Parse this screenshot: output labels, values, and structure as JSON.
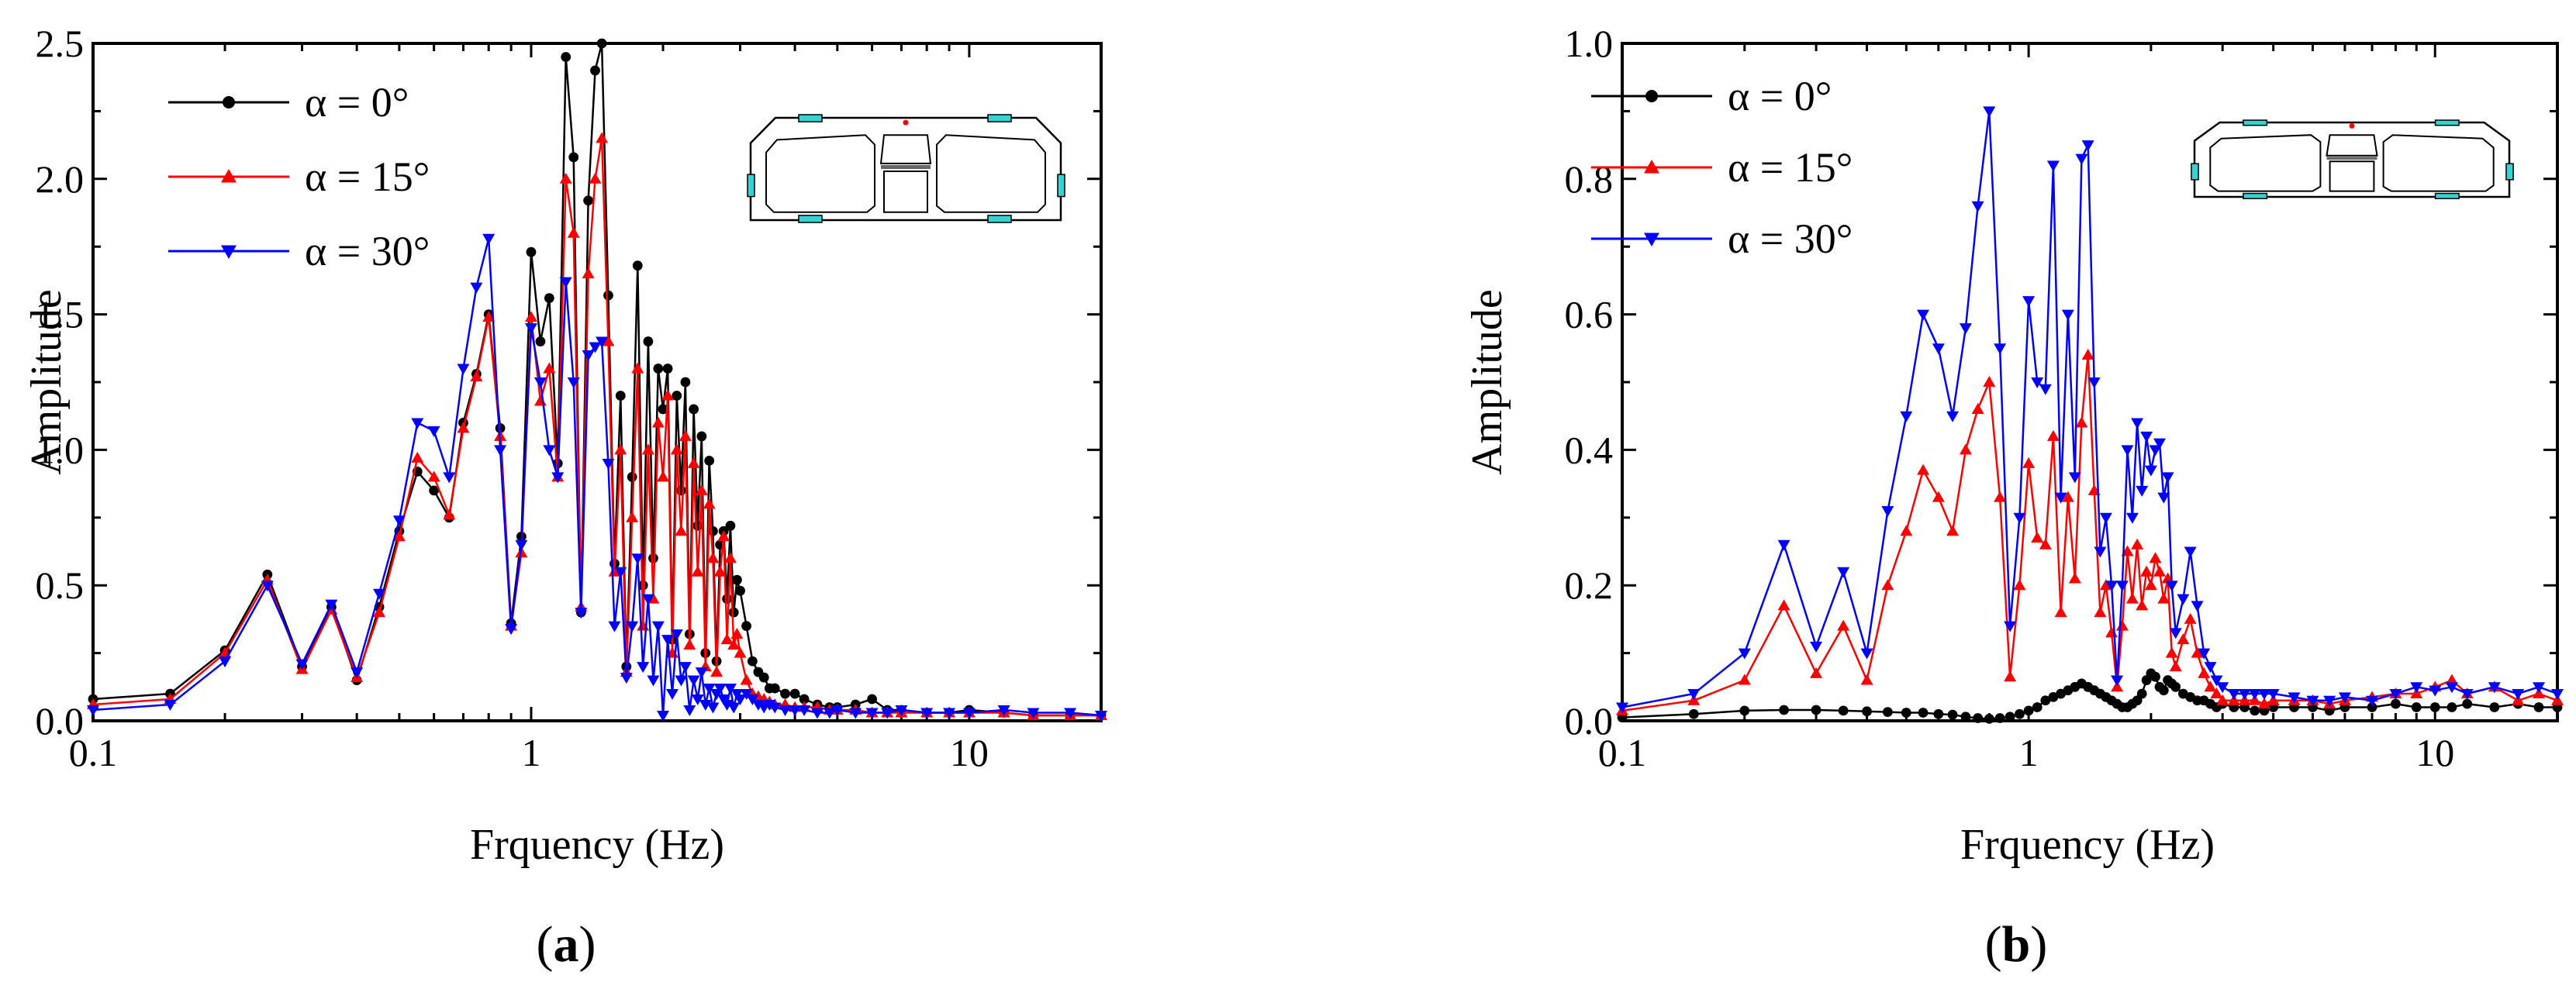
{
  "chart_data": [
    {
      "type": "line",
      "panel": "(a)",
      "panel_letter": "a",
      "xlabel": "Frquency (Hz)",
      "ylabel": "Amplitude",
      "xscale": "log",
      "xlim": [
        0.1,
        20
      ],
      "ylim": [
        0,
        2.5
      ],
      "yticks": [
        "0.0",
        "0.5",
        "1.0",
        "1.5",
        "2.0",
        "2.5"
      ],
      "xticks": [
        "0.1",
        "1",
        "10"
      ],
      "legend": "top-left",
      "inset": "box-girder-cross-section",
      "x": [
        0.1,
        0.15,
        0.2,
        0.25,
        0.3,
        0.35,
        0.4,
        0.45,
        0.5,
        0.55,
        0.6,
        0.65,
        0.7,
        0.75,
        0.8,
        0.85,
        0.9,
        0.95,
        1.0,
        1.05,
        1.1,
        1.15,
        1.2,
        1.25,
        1.3,
        1.35,
        1.4,
        1.45,
        1.5,
        1.55,
        1.6,
        1.65,
        1.7,
        1.75,
        1.8,
        1.85,
        1.9,
        1.95,
        2.0,
        2.05,
        2.1,
        2.15,
        2.2,
        2.25,
        2.3,
        2.35,
        2.4,
        2.45,
        2.5,
        2.55,
        2.6,
        2.65,
        2.7,
        2.75,
        2.8,
        2.85,
        2.9,
        2.95,
        3.0,
        3.1,
        3.2,
        3.3,
        3.4,
        3.5,
        3.6,
        3.8,
        4.0,
        4.2,
        4.5,
        4.8,
        5.0,
        5.5,
        6.0,
        6.5,
        7.0,
        8.0,
        9.0,
        10.0,
        12.0,
        14.0,
        17.0,
        20.0
      ],
      "series": [
        {
          "name": "α = 0°",
          "color": "#000000",
          "marker": "circle",
          "values": [
            0.08,
            0.1,
            0.26,
            0.54,
            0.2,
            0.42,
            0.15,
            0.42,
            0.7,
            0.92,
            0.85,
            0.75,
            1.1,
            1.28,
            1.5,
            1.08,
            0.36,
            0.68,
            1.73,
            1.4,
            1.56,
            0.95,
            2.45,
            2.08,
            0.4,
            1.92,
            2.4,
            2.5,
            1.57,
            0.58,
            1.2,
            0.2,
            0.9,
            1.68,
            0.5,
            1.4,
            0.6,
            1.3,
            1.15,
            1.3,
            0.3,
            1.2,
            0.85,
            1.25,
            0.32,
            1.15,
            0.72,
            1.05,
            0.25,
            0.96,
            0.7,
            0.22,
            0.65,
            0.7,
            0.45,
            0.72,
            0.4,
            0.52,
            0.48,
            0.35,
            0.22,
            0.18,
            0.16,
            0.12,
            0.12,
            0.1,
            0.1,
            0.08,
            0.06,
            0.05,
            0.05,
            0.06,
            0.08,
            0.04,
            0.04,
            0.03,
            0.03,
            0.04,
            0.03,
            0.02,
            0.02,
            0.02
          ]
        },
        {
          "name": "α = 15°",
          "color": "#ff0000",
          "marker": "triangle-up",
          "values": [
            0.06,
            0.08,
            0.25,
            0.52,
            0.19,
            0.41,
            0.16,
            0.4,
            0.68,
            0.97,
            0.9,
            0.76,
            1.08,
            1.27,
            1.49,
            1.05,
            0.35,
            0.62,
            1.49,
            1.18,
            1.3,
            0.9,
            2.0,
            1.8,
            0.42,
            1.65,
            2.0,
            2.15,
            1.4,
            0.55,
            1.0,
            0.18,
            0.75,
            1.3,
            0.35,
            1.0,
            0.45,
            1.1,
            0.9,
            1.2,
            0.25,
            1.0,
            0.7,
            1.05,
            0.28,
            0.95,
            0.55,
            0.85,
            0.2,
            0.8,
            0.6,
            0.18,
            0.55,
            0.68,
            0.3,
            0.6,
            0.28,
            0.32,
            0.25,
            0.15,
            0.1,
            0.09,
            0.08,
            0.07,
            0.06,
            0.06,
            0.05,
            0.05,
            0.05,
            0.04,
            0.04,
            0.04,
            0.03,
            0.03,
            0.03,
            0.03,
            0.03,
            0.03,
            0.03,
            0.02,
            0.02,
            0.02
          ]
        },
        {
          "name": "α = 30°",
          "color": "#0000ff",
          "marker": "triangle-down",
          "values": [
            0.04,
            0.06,
            0.22,
            0.5,
            0.21,
            0.43,
            0.18,
            0.47,
            0.74,
            1.1,
            1.07,
            0.9,
            1.3,
            1.6,
            1.78,
            1.0,
            0.34,
            0.65,
            1.45,
            1.25,
            1.0,
            0.9,
            1.62,
            1.25,
            0.4,
            1.35,
            1.38,
            1.4,
            0.95,
            0.35,
            0.55,
            0.16,
            0.35,
            0.6,
            0.2,
            0.45,
            0.15,
            0.35,
            0.02,
            0.3,
            0.1,
            0.32,
            0.15,
            0.2,
            0.04,
            0.15,
            0.08,
            0.18,
            0.06,
            0.12,
            0.05,
            0.1,
            0.12,
            0.08,
            0.06,
            0.12,
            0.05,
            0.1,
            0.08,
            0.1,
            0.08,
            0.06,
            0.05,
            0.06,
            0.05,
            0.04,
            0.04,
            0.04,
            0.03,
            0.03,
            0.04,
            0.03,
            0.03,
            0.03,
            0.04,
            0.03,
            0.03,
            0.03,
            0.04,
            0.03,
            0.03,
            0.02
          ]
        }
      ]
    },
    {
      "type": "line",
      "panel": "(b)",
      "panel_letter": "b",
      "xlabel": "Frquency (Hz)",
      "ylabel": "Amplitude",
      "xscale": "log",
      "xlim": [
        0.1,
        20
      ],
      "ylim": [
        0,
        1.0
      ],
      "yticks": [
        "0.0",
        "0.2",
        "0.4",
        "0.6",
        "0.8",
        "1.0"
      ],
      "xticks": [
        "0.1",
        "1",
        "10"
      ],
      "legend": "top-left",
      "inset": "box-girder-cross-section",
      "x": [
        0.1,
        0.15,
        0.2,
        0.25,
        0.3,
        0.35,
        0.4,
        0.45,
        0.5,
        0.55,
        0.6,
        0.65,
        0.7,
        0.75,
        0.8,
        0.85,
        0.9,
        0.95,
        1.0,
        1.05,
        1.1,
        1.15,
        1.2,
        1.25,
        1.3,
        1.35,
        1.4,
        1.45,
        1.5,
        1.55,
        1.6,
        1.65,
        1.7,
        1.75,
        1.8,
        1.85,
        1.9,
        1.95,
        2.0,
        2.05,
        2.1,
        2.15,
        2.2,
        2.25,
        2.3,
        2.4,
        2.5,
        2.6,
        2.7,
        2.8,
        2.9,
        3.0,
        3.2,
        3.4,
        3.6,
        3.8,
        4.0,
        4.5,
        5.0,
        5.5,
        6.0,
        7.0,
        8.0,
        9.0,
        10.0,
        11.0,
        12.0,
        14.0,
        16.0,
        18.0,
        20.0
      ],
      "series": [
        {
          "name": "α = 0°",
          "color": "#000000",
          "marker": "circle",
          "values": [
            0.005,
            0.01,
            0.015,
            0.016,
            0.016,
            0.015,
            0.014,
            0.013,
            0.012,
            0.012,
            0.01,
            0.009,
            0.006,
            0.004,
            0.003,
            0.004,
            0.006,
            0.01,
            0.015,
            0.02,
            0.03,
            0.035,
            0.04,
            0.045,
            0.05,
            0.055,
            0.05,
            0.045,
            0.04,
            0.035,
            0.03,
            0.025,
            0.02,
            0.02,
            0.025,
            0.03,
            0.04,
            0.06,
            0.07,
            0.065,
            0.05,
            0.045,
            0.06,
            0.055,
            0.05,
            0.04,
            0.035,
            0.03,
            0.03,
            0.025,
            0.02,
            0.025,
            0.02,
            0.02,
            0.015,
            0.015,
            0.02,
            0.02,
            0.02,
            0.015,
            0.02,
            0.02,
            0.025,
            0.02,
            0.02,
            0.02,
            0.025,
            0.02,
            0.025,
            0.02,
            0.02
          ]
        },
        {
          "name": "α = 15°",
          "color": "#ff0000",
          "marker": "triangle-up",
          "values": [
            0.015,
            0.03,
            0.06,
            0.17,
            0.07,
            0.14,
            0.06,
            0.2,
            0.28,
            0.37,
            0.33,
            0.28,
            0.4,
            0.46,
            0.5,
            0.33,
            0.065,
            0.2,
            0.38,
            0.27,
            0.26,
            0.42,
            0.16,
            0.33,
            0.21,
            0.44,
            0.54,
            0.34,
            0.16,
            0.2,
            0.13,
            0.05,
            0.14,
            0.25,
            0.18,
            0.26,
            0.17,
            0.22,
            0.2,
            0.24,
            0.22,
            0.18,
            0.21,
            0.1,
            0.08,
            0.12,
            0.15,
            0.1,
            0.07,
            0.05,
            0.04,
            0.03,
            0.03,
            0.03,
            0.03,
            0.025,
            0.03,
            0.03,
            0.03,
            0.025,
            0.03,
            0.035,
            0.04,
            0.04,
            0.05,
            0.06,
            0.04,
            0.05,
            0.03,
            0.04,
            0.03
          ]
        },
        {
          "name": "α = 30°",
          "color": "#0000ff",
          "marker": "triangle-down",
          "values": [
            0.02,
            0.04,
            0.1,
            0.26,
            0.11,
            0.22,
            0.1,
            0.31,
            0.45,
            0.6,
            0.55,
            0.45,
            0.58,
            0.76,
            0.9,
            0.55,
            0.14,
            0.3,
            0.62,
            0.5,
            0.49,
            0.82,
            0.33,
            0.6,
            0.36,
            0.83,
            0.85,
            0.5,
            0.25,
            0.3,
            0.2,
            0.06,
            0.2,
            0.4,
            0.3,
            0.44,
            0.34,
            0.42,
            0.37,
            0.4,
            0.41,
            0.33,
            0.36,
            0.2,
            0.13,
            0.18,
            0.25,
            0.17,
            0.1,
            0.08,
            0.06,
            0.05,
            0.04,
            0.04,
            0.04,
            0.04,
            0.04,
            0.035,
            0.03,
            0.03,
            0.035,
            0.03,
            0.04,
            0.05,
            0.045,
            0.05,
            0.04,
            0.05,
            0.04,
            0.05,
            0.04
          ]
        }
      ]
    }
  ],
  "colors": {
    "inset_box": "#000000",
    "inset_sensor": "#35d4d4",
    "inset_dot": "#ff0000"
  }
}
